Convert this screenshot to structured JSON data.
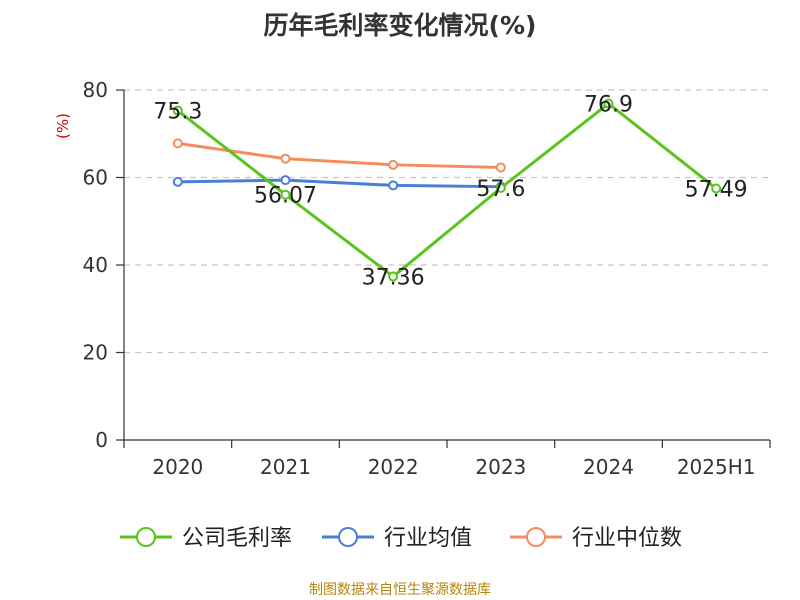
{
  "title": "历年毛利率变化情况(%)",
  "source": "制图数据来自恒生聚源数据库",
  "colors": {
    "company": "#5ac31e",
    "industry_avg": "#4a7fd6",
    "industry_median": "#f58c5a",
    "ylabel": "#cc0000",
    "grid": "#c8c8c8",
    "axis": "#333333",
    "source": "#b8860b"
  },
  "chart_data": {
    "type": "line",
    "title": "历年毛利率变化情况(%)",
    "xlabel": "",
    "ylabel": "(%)",
    "categories": [
      "2020",
      "2021",
      "2022",
      "2023",
      "2024",
      "2025H1"
    ],
    "ylim": [
      0,
      80
    ],
    "yticks": [
      0,
      20,
      40,
      60,
      80
    ],
    "grid": true,
    "legend_position": "bottom",
    "series": [
      {
        "name": "公司毛利率",
        "values": [
          75.3,
          56.07,
          37.36,
          57.6,
          76.9,
          57.49
        ],
        "labels": [
          "75.3",
          "56.07",
          "37.36",
          "57.6",
          "76.9",
          "57.49"
        ],
        "color_key": "company"
      },
      {
        "name": "行业均值",
        "values": [
          59.0,
          59.4,
          58.2,
          57.9,
          null,
          null
        ],
        "color_key": "industry_avg"
      },
      {
        "name": "行业中位数",
        "values": [
          67.8,
          64.3,
          62.9,
          62.3,
          null,
          null
        ],
        "color_key": "industry_median"
      }
    ]
  }
}
